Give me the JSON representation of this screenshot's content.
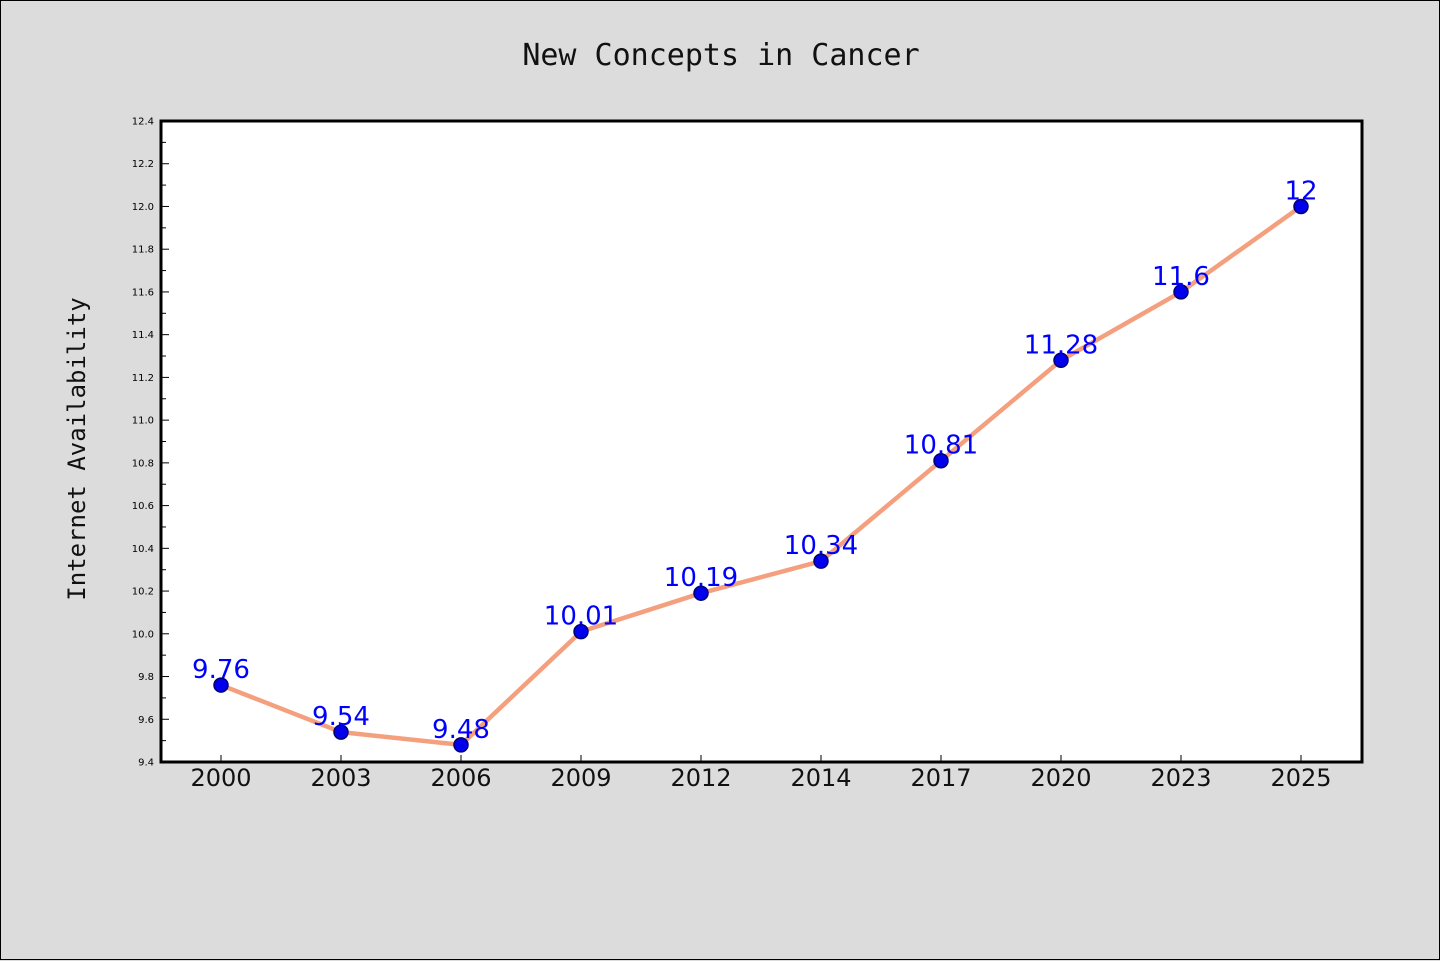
{
  "chart_data": {
    "type": "line",
    "title": "New Concepts in Cancer",
    "xlabel": "",
    "ylabel": "Internet Availability",
    "categories": [
      "2000",
      "2003",
      "2006",
      "2009",
      "2012",
      "2014",
      "2017",
      "2020",
      "2023",
      "2025"
    ],
    "series": [
      {
        "values": [
          9.76,
          9.54,
          9.48,
          10.01,
          10.19,
          10.34,
          10.81,
          11.28,
          11.6,
          12
        ],
        "data_labels": [
          "9.76",
          "9.54",
          "9.48",
          "10.01",
          "10.19",
          "10.34",
          "10.81",
          "11.28",
          "11.6",
          "12"
        ]
      }
    ],
    "ylim": [
      9.4,
      12.4
    ],
    "yticks": [
      "9.4",
      "9.6",
      "9.8",
      "10.0",
      "10.2",
      "10.4",
      "10.6",
      "10.8",
      "11.0",
      "11.2",
      "11.4",
      "11.6",
      "11.8",
      "12.0",
      "12.2",
      "12.4"
    ],
    "grid": false,
    "legend": "none",
    "colors": {
      "line": "#f4a07e",
      "marker_fill": "#0000ee",
      "marker_edge": "#00006e",
      "data_label": "#0000ff",
      "figure_background": "#dcdcdc",
      "plot_background": "#ffffff"
    }
  }
}
